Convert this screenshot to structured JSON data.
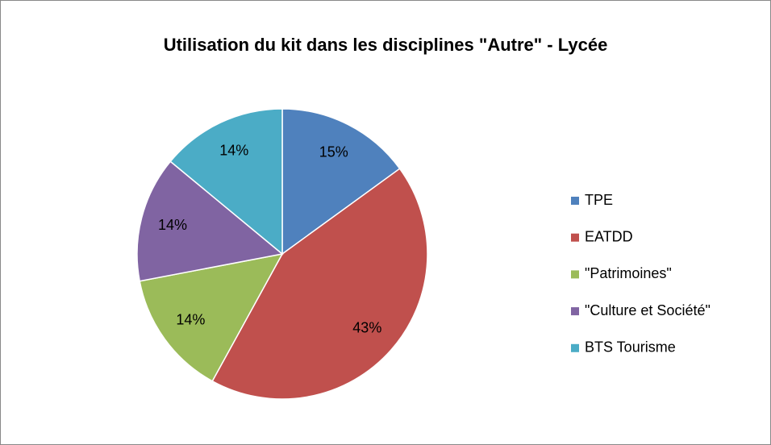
{
  "chart_data": {
    "type": "pie",
    "title": "Utilisation du kit dans les disciplines \"Autre\" - Lycée",
    "categories": [
      "TPE",
      "EATDD",
      "\"Patrimoines\"",
      "\"Culture et Société\"",
      "BTS Tourisme"
    ],
    "values": [
      15,
      43,
      14,
      14,
      14
    ],
    "value_labels": [
      "15%",
      "43%",
      "14%",
      "14%",
      "14%"
    ],
    "colors": [
      "#4f81bd",
      "#c0504d",
      "#9bbb59",
      "#8064a2",
      "#4bacc6"
    ],
    "legend": "right"
  }
}
